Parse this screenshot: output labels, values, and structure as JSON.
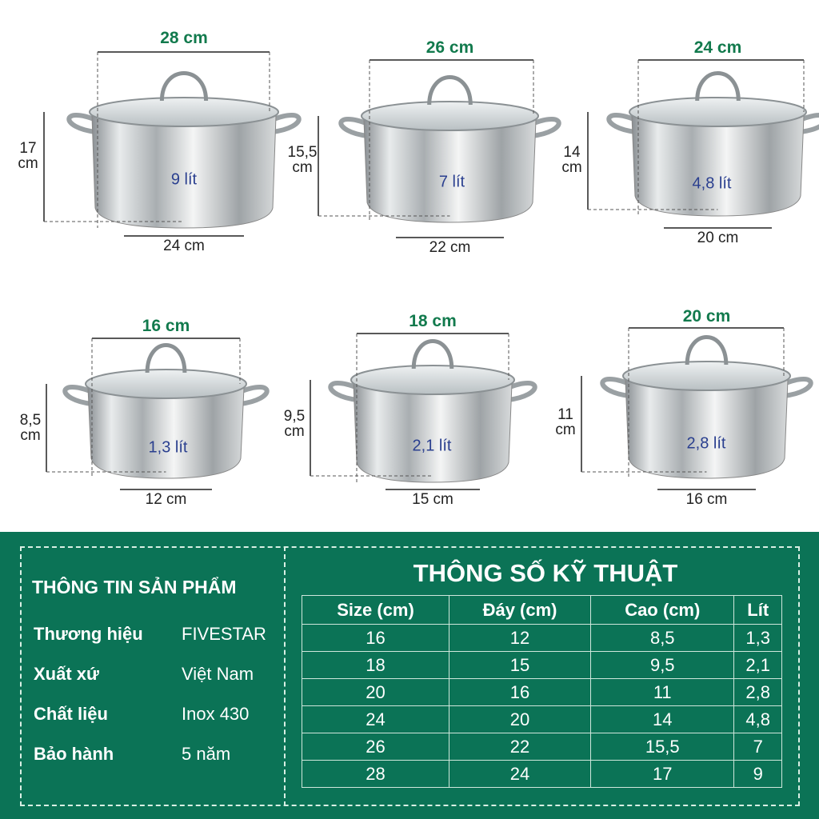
{
  "pots": [
    {
      "top": "28 cm",
      "height": [
        "17",
        "cm"
      ],
      "bottom": "24 cm",
      "volume": "9 lít"
    },
    {
      "top": "26 cm",
      "height": [
        "15,5",
        "cm"
      ],
      "bottom": "22 cm",
      "volume": "7 lít"
    },
    {
      "top": "24 cm",
      "height": [
        "14",
        "cm"
      ],
      "bottom": "20 cm",
      "volume": "4,8 lít"
    },
    {
      "top": "16 cm",
      "height": [
        "8,5",
        "cm"
      ],
      "bottom": "12 cm",
      "volume": "1,3 lít"
    },
    {
      "top": "18 cm",
      "height": [
        "9,5",
        "cm"
      ],
      "bottom": "15 cm",
      "volume": "2,1 lít"
    },
    {
      "top": "20 cm",
      "height": [
        "11",
        "cm"
      ],
      "bottom": "16 cm",
      "volume": "2,8 lít"
    }
  ],
  "info": {
    "title": "THÔNG TIN SẢN PHẨM",
    "rows": [
      {
        "k": "Thương hiệu",
        "v": "FIVESTAR"
      },
      {
        "k": "Xuất xứ",
        "v": "Việt Nam"
      },
      {
        "k": "Chất liệu",
        "v": "Inox 430"
      },
      {
        "k": "Bảo hành",
        "v": "5 năm"
      }
    ]
  },
  "specs": {
    "title": "THÔNG SỐ KỸ THUẬT",
    "headers": [
      "Size (cm)",
      "Đáy (cm)",
      "Cao (cm)",
      "Lít"
    ],
    "rows": [
      [
        "16",
        "12",
        "8,5",
        "1,3"
      ],
      [
        "18",
        "15",
        "9,5",
        "2,1"
      ],
      [
        "20",
        "16",
        "11",
        "2,8"
      ],
      [
        "24",
        "20",
        "14",
        "4,8"
      ],
      [
        "26",
        "22",
        "15,5",
        "7"
      ],
      [
        "28",
        "24",
        "17",
        "9"
      ]
    ]
  },
  "colors": {
    "panel": "#0b7356",
    "top_dim": "#127a4d",
    "volume": "#2a3f8f"
  }
}
